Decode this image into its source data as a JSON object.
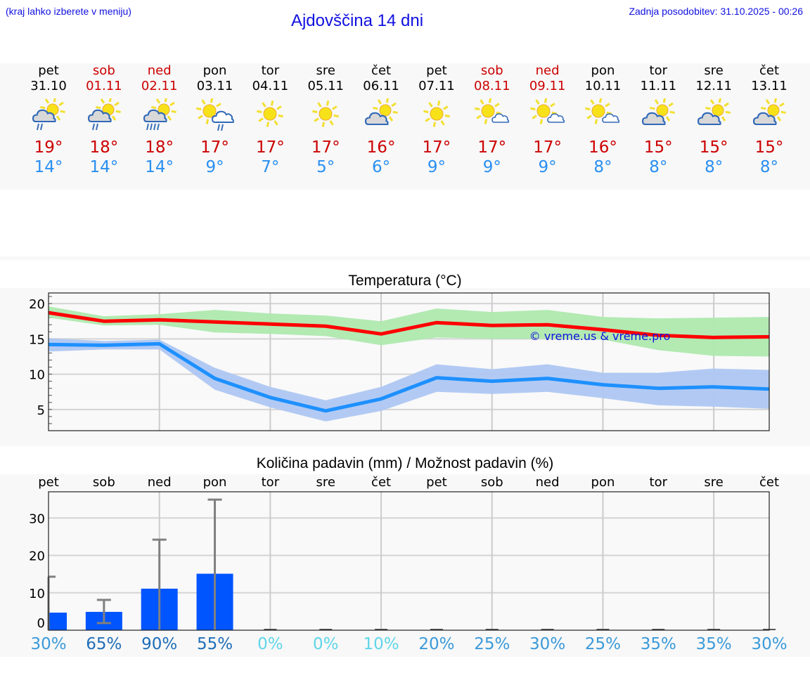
{
  "header": {
    "location_hint": "(kraj lahko izberete v meniju)",
    "title": "Ajdovščina 14 dni",
    "last_update": "Zadnja posodobitev: 31.10.2025 - 00:26"
  },
  "days": [
    {
      "name": "pet",
      "date": "31.10",
      "weekend": false,
      "icon": "sun-cloud-rain-icon",
      "tmax": "19°",
      "tmin": "14°"
    },
    {
      "name": "sob",
      "date": "01.11",
      "weekend": true,
      "icon": "sun-cloud-rain-icon",
      "tmax": "18°",
      "tmin": "14°"
    },
    {
      "name": "ned",
      "date": "02.11",
      "weekend": true,
      "icon": "sun-cloud-heavy-rain-icon",
      "tmax": "18°",
      "tmin": "14°"
    },
    {
      "name": "pon",
      "date": "03.11",
      "weekend": false,
      "icon": "sun-light-cloud-rain-icon",
      "tmax": "17°",
      "tmin": "9°"
    },
    {
      "name": "tor",
      "date": "04.11",
      "weekend": false,
      "icon": "sun-icon",
      "tmax": "17°",
      "tmin": "7°"
    },
    {
      "name": "sre",
      "date": "05.11",
      "weekend": false,
      "icon": "sun-icon",
      "tmax": "17°",
      "tmin": "5°"
    },
    {
      "name": "čet",
      "date": "06.11",
      "weekend": false,
      "icon": "sun-cloud-icon",
      "tmax": "16°",
      "tmin": "6°"
    },
    {
      "name": "pet",
      "date": "07.11",
      "weekend": false,
      "icon": "sun-icon",
      "tmax": "17°",
      "tmin": "9°"
    },
    {
      "name": "sob",
      "date": "08.11",
      "weekend": true,
      "icon": "sun-small-cloud-icon",
      "tmax": "17°",
      "tmin": "9°"
    },
    {
      "name": "ned",
      "date": "09.11",
      "weekend": true,
      "icon": "sun-small-cloud-icon",
      "tmax": "17°",
      "tmin": "9°"
    },
    {
      "name": "pon",
      "date": "10.11",
      "weekend": false,
      "icon": "sun-small-cloud-icon",
      "tmax": "16°",
      "tmin": "8°"
    },
    {
      "name": "tor",
      "date": "11.11",
      "weekend": false,
      "icon": "sun-cloud-icon",
      "tmax": "15°",
      "tmin": "8°"
    },
    {
      "name": "sre",
      "date": "12.11",
      "weekend": false,
      "icon": "sun-cloud-icon",
      "tmax": "15°",
      "tmin": "8°"
    },
    {
      "name": "čet",
      "date": "13.11",
      "weekend": false,
      "icon": "sun-cloud-icon",
      "tmax": "15°",
      "tmin": "8°"
    }
  ],
  "colors": {
    "tmax": "#cc0000",
    "tmin": "#2a8ff0",
    "weekend": "#cc0000",
    "max_line": "#ff0000",
    "max_band": "#aee9ae",
    "min_line": "#1e90ff",
    "min_band": "#aec7f2",
    "precip_bar": "#0055ff",
    "error_bar": "#808080",
    "link": "#1010e0"
  },
  "temp_chart": {
    "title": "Temperatura (°C)",
    "watermark": "© vreme.us & vreme.pro"
  },
  "precip_chart": {
    "title": "Količina padavin (mm) / Možnost padavin (%)"
  },
  "chart_data": [
    {
      "type": "line",
      "title": "Temperatura (°C)",
      "xlabel": "",
      "ylabel": "°C",
      "categories": [
        "31.10",
        "01.11",
        "02.11",
        "03.11",
        "04.11",
        "05.11",
        "06.11",
        "07.11",
        "08.11",
        "09.11",
        "10.11",
        "11.11",
        "12.11",
        "13.11"
      ],
      "yticks": [
        5,
        10,
        15,
        20
      ],
      "ylim": [
        2,
        21.5
      ],
      "grid": true,
      "series": [
        {
          "name": "Tmax",
          "color": "#ff0000",
          "values": [
            18.7,
            17.5,
            17.7,
            17.4,
            17.1,
            16.8,
            15.7,
            17.3,
            16.9,
            17.0,
            16.3,
            15.5,
            15.2,
            15.3
          ]
        },
        {
          "name": "Tmax range upper",
          "color": "#aee9ae",
          "values": [
            19.6,
            18.2,
            18.5,
            19.1,
            18.6,
            18.3,
            17.5,
            19.3,
            18.8,
            19.1,
            18.1,
            17.9,
            18.0,
            18.1
          ]
        },
        {
          "name": "Tmax range lower",
          "color": "#aee9ae",
          "values": [
            18.0,
            16.9,
            17.0,
            15.9,
            15.7,
            15.4,
            14.1,
            15.2,
            15.0,
            15.0,
            14.9,
            13.4,
            12.6,
            12.5
          ]
        },
        {
          "name": "Tmin",
          "color": "#1e90ff",
          "values": [
            14.2,
            14.1,
            14.3,
            9.4,
            6.7,
            4.8,
            6.5,
            9.5,
            9.0,
            9.4,
            8.5,
            8.0,
            8.2,
            7.9
          ]
        },
        {
          "name": "Tmin range upper",
          "color": "#aec7f2",
          "values": [
            15.1,
            14.7,
            14.9,
            10.9,
            8.2,
            6.3,
            8.2,
            11.4,
            10.7,
            11.4,
            10.2,
            10.2,
            10.8,
            10.6
          ]
        },
        {
          "name": "Tmin range lower",
          "color": "#aec7f2",
          "values": [
            13.2,
            13.5,
            13.5,
            7.8,
            5.3,
            3.3,
            4.8,
            7.5,
            7.2,
            7.5,
            6.6,
            5.6,
            5.4,
            5.1
          ]
        }
      ],
      "annotations": [
        "© vreme.us & vreme.pro"
      ]
    },
    {
      "type": "bar",
      "title": "Količina padavin (mm) / Možnost padavin (%)",
      "xlabel": "",
      "ylabel": "mm",
      "categories": [
        "pet",
        "sob",
        "ned",
        "pon",
        "tor",
        "sre",
        "čet",
        "pet",
        "sob",
        "ned",
        "pon",
        "tor",
        "sre",
        "čet"
      ],
      "yticks": [
        0,
        10,
        20,
        30
      ],
      "ylim": [
        0,
        37
      ],
      "grid": true,
      "series": [
        {
          "name": "Količina padavin (mm)",
          "color": "#0055ff",
          "values": [
            4.7,
            4.9,
            11.1,
            15.1,
            0,
            0,
            0,
            0,
            0,
            0,
            0,
            0,
            0,
            0
          ]
        },
        {
          "name": "Error high (mm)",
          "color": "#808080",
          "values": [
            14.3,
            8.1,
            24.2,
            34.9,
            0,
            0,
            0,
            0,
            0,
            0,
            0,
            0,
            0,
            0
          ]
        },
        {
          "name": "Error low (mm)",
          "color": "#808080",
          "values": [
            0,
            1.9,
            0,
            0,
            0,
            0,
            0,
            0,
            0,
            0,
            0,
            0,
            0,
            0
          ]
        }
      ],
      "probability_pct": [
        30,
        65,
        90,
        55,
        0,
        0,
        10,
        20,
        25,
        30,
        25,
        35,
        35,
        30
      ],
      "probability_labels": [
        "30%",
        "65%",
        "90%",
        "55%",
        "0%",
        "0%",
        "10%",
        "20%",
        "25%",
        "30%",
        "25%",
        "35%",
        "35%",
        "30%"
      ]
    }
  ],
  "precip_days": [
    "pet",
    "sob",
    "ned",
    "pon",
    "tor",
    "sre",
    "čet",
    "pet",
    "sob",
    "ned",
    "pon",
    "tor",
    "sre",
    "čet"
  ],
  "precip_pct": [
    {
      "label": "30%",
      "color": "#3a9ad9"
    },
    {
      "label": "65%",
      "color": "#1f6db8"
    },
    {
      "label": "90%",
      "color": "#1f6db8"
    },
    {
      "label": "55%",
      "color": "#1f6db8"
    },
    {
      "label": "0%",
      "color": "#5fd6e8"
    },
    {
      "label": "0%",
      "color": "#5fd6e8"
    },
    {
      "label": "10%",
      "color": "#5fd6e8"
    },
    {
      "label": "20%",
      "color": "#3a9ad9"
    },
    {
      "label": "25%",
      "color": "#3a9ad9"
    },
    {
      "label": "30%",
      "color": "#3a9ad9"
    },
    {
      "label": "25%",
      "color": "#3a9ad9"
    },
    {
      "label": "35%",
      "color": "#3a9ad9"
    },
    {
      "label": "35%",
      "color": "#3a9ad9"
    },
    {
      "label": "30%",
      "color": "#3a9ad9"
    }
  ]
}
